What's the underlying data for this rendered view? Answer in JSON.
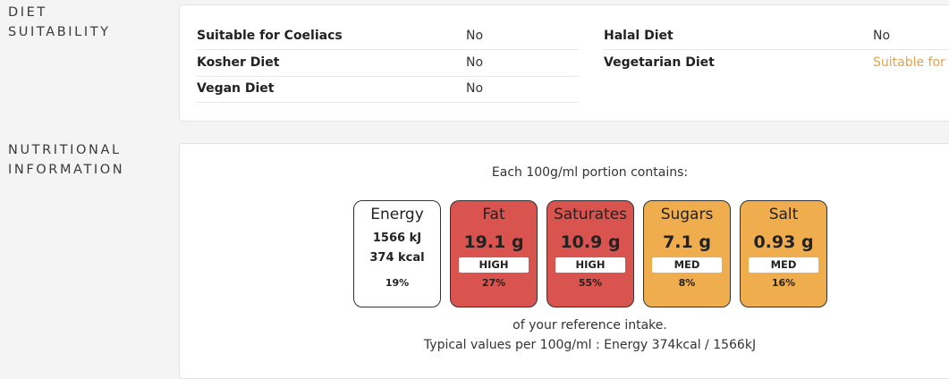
{
  "diet": {
    "label_line1": "DIET",
    "label_line2": "SUITABILITY",
    "left": [
      {
        "key": "Suitable for Coeliacs",
        "value": "No"
      },
      {
        "key": "Kosher Diet",
        "value": "No"
      },
      {
        "key": "Vegan Diet",
        "value": "No"
      }
    ],
    "right": [
      {
        "key": "Halal Diet",
        "value": "No"
      },
      {
        "key": "Vegetarian Diet",
        "value": "Suitable for"
      }
    ],
    "accent_color": "#e8a24a"
  },
  "nutrition": {
    "label_line1": "NUTRITIONAL",
    "label_line2": "INFORMATION",
    "intro": "Each 100g/ml portion contains:",
    "energy": {
      "name": "Energy",
      "kj": "1566 kJ",
      "kcal": "374 kcal",
      "pct": "19%"
    },
    "tiles": [
      {
        "name": "Fat",
        "value": "19.1 g",
        "level": "HIGH",
        "pct": "27%",
        "color": "#d9534f"
      },
      {
        "name": "Saturates",
        "value": "10.9 g",
        "level": "HIGH",
        "pct": "55%",
        "color": "#d9534f"
      },
      {
        "name": "Sugars",
        "value": "7.1 g",
        "level": "MED",
        "pct": "8%",
        "color": "#f0ad4e"
      },
      {
        "name": "Salt",
        "value": "0.93 g",
        "level": "MED",
        "pct": "16%",
        "color": "#f0ad4e"
      }
    ],
    "outro": "of your reference intake.",
    "typical": "Typical values per 100g/ml : Energy 374kcal / 1566kJ"
  }
}
